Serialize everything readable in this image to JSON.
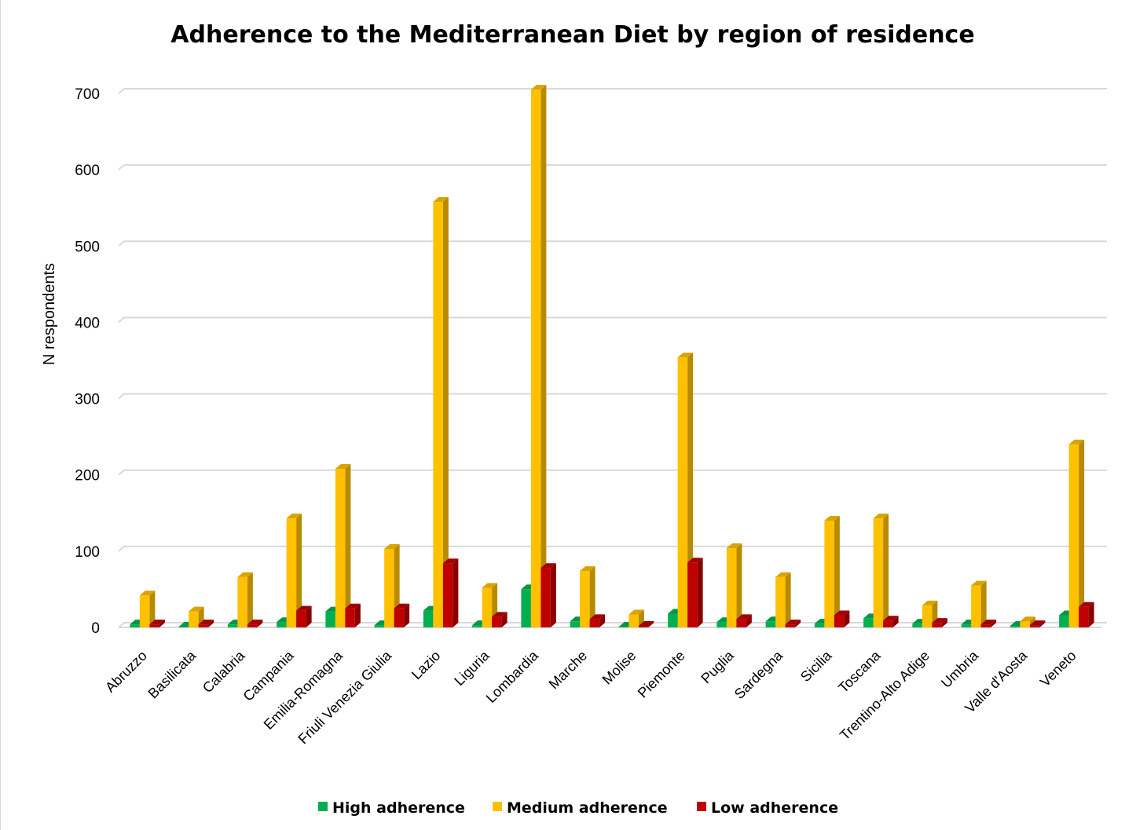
{
  "chart_data": {
    "type": "bar",
    "title": "Adherence to the Mediterranean Diet by region of residence",
    "xlabel": "",
    "ylabel": "N respondents",
    "ylim": [
      0,
      700
    ],
    "yticks": [
      0,
      100,
      200,
      300,
      400,
      500,
      600,
      700
    ],
    "grid": true,
    "legend_position": "bottom",
    "categories": [
      "Abruzzo",
      "Basilicata",
      "Calabria",
      "Campania",
      "Emilia-Romagna",
      "Friuli Venezia Giulia",
      "Lazio",
      "Liguria",
      "Lombardia",
      "Marche",
      "Molise",
      "Piemonte",
      "Puglia",
      "Sardegna",
      "Sicilia",
      "Toscana",
      "Trentino-Alto Adige",
      "Umbria",
      "Valle d'Aosta",
      "Veneto"
    ],
    "series": [
      {
        "name": "High adherence",
        "color": "#00b050",
        "values": [
          4,
          1,
          4,
          7,
          21,
          3,
          22,
          3,
          50,
          8,
          1,
          18,
          7,
          8,
          5,
          12,
          5,
          4,
          2,
          16
        ]
      },
      {
        "name": "Medium adherence",
        "color": "#ffc000",
        "values": [
          42,
          21,
          66,
          143,
          208,
          103,
          558,
          52,
          705,
          74,
          17,
          354,
          104,
          66,
          140,
          143,
          29,
          55,
          8,
          240
        ]
      },
      {
        "name": "Low adherence",
        "color": "#c00000",
        "values": [
          4,
          4,
          4,
          22,
          25,
          25,
          84,
          14,
          78,
          11,
          2,
          85,
          11,
          4,
          16,
          9,
          6,
          4,
          3,
          27
        ]
      }
    ]
  },
  "colors": {
    "background": "#ffffff",
    "grid": "#d9d9d9"
  }
}
